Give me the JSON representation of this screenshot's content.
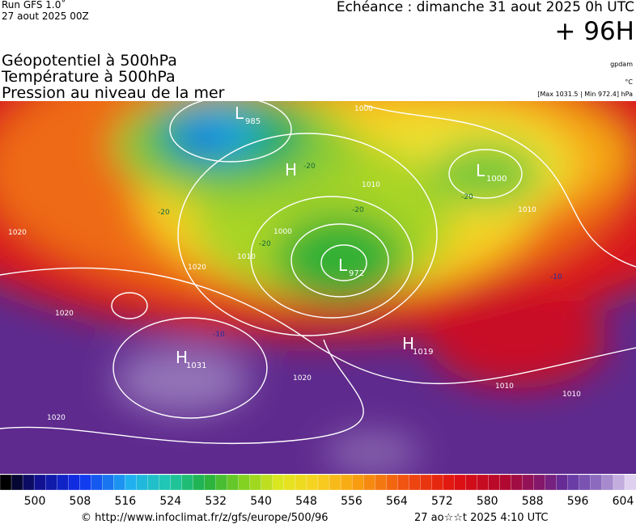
{
  "header": {
    "run": "Run GFS 1.0˚",
    "date": "27 aout 2025 00Z",
    "echeance": "Echéance : dimanche 31 aout 2025 0h UTC",
    "lead": "+ 96H",
    "fields": [
      "Géopotentiel à 500hPa",
      "Température à 500hPa",
      "Pression au niveau de la mer"
    ],
    "units": [
      "gpdam",
      "°C",
      "[Max 1031.5 | Min 972.4] hPa"
    ]
  },
  "map": {
    "centers": [
      {
        "letter": "L",
        "value": "985"
      },
      {
        "letter": "H",
        "value": null
      },
      {
        "letter": "L",
        "value": "1000"
      },
      {
        "letter": "L",
        "value": "972"
      },
      {
        "letter": "H",
        "value": "1031"
      },
      {
        "letter": "H",
        "value": "1019"
      }
    ],
    "isobar_labels": [
      "1000",
      "1010",
      "1020",
      "1020",
      "1020",
      "1020",
      "1020",
      "1010",
      "1010",
      "1000",
      "1010",
      "1010"
    ],
    "temperature_labels": [
      "-20",
      "-20",
      "-20",
      "-20",
      "-20",
      "-10",
      "-10"
    ]
  },
  "colorbar": {
    "labels": [
      "500",
      "508",
      "516",
      "524",
      "532",
      "540",
      "548",
      "556",
      "564",
      "572",
      "580",
      "588",
      "596",
      "604"
    ]
  },
  "footer": {
    "url": "© http://www.infoclimat.fr/z/gfs/europe/500/96",
    "timestamp": "27 ao☆☆t 2025  4:10 UTC"
  }
}
